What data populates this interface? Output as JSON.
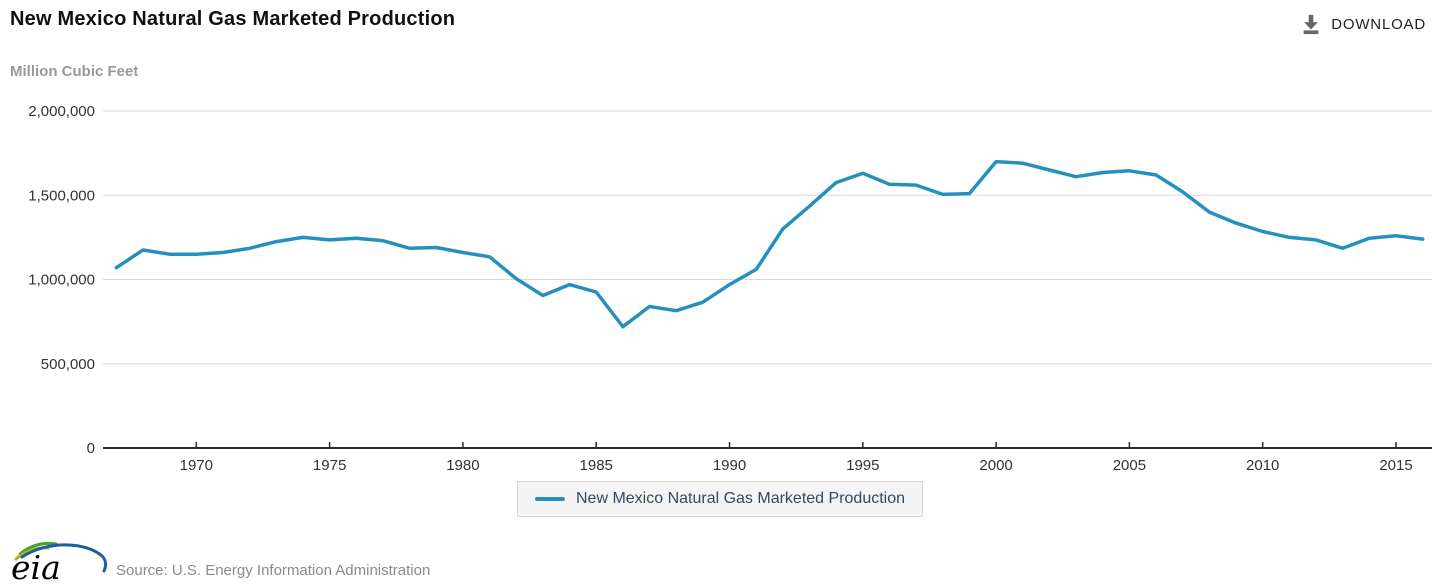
{
  "header": {
    "title": "New Mexico Natural Gas Marketed Production",
    "download_label": "DOWNLOAD"
  },
  "legend": {
    "label": "New Mexico Natural Gas Marketed Production"
  },
  "footer": {
    "logo_text": "eia",
    "source_text": "Source: U.S. Energy Information Administration"
  },
  "colors": {
    "line": "#2590be",
    "grid": "#d9d9d9",
    "axis": "#2b2b2b",
    "tick_label": "#333333",
    "legend_text": "#35495e",
    "subtitle": "#999999",
    "source_text": "#8a8a8a",
    "download_icon": "#666666",
    "logo_green": "#4f9d33",
    "logo_yellow": "#aeb514",
    "logo_blue": "#1c5f9e"
  },
  "chart_data": {
    "type": "line",
    "title": "New Mexico Natural Gas Marketed Production",
    "ylabel": "Million Cubic Feet",
    "xlabel": "",
    "grid": true,
    "legend_position": "bottom",
    "ylim": [
      0,
      2000000
    ],
    "xlim": [
      1966.5,
      2016.35
    ],
    "y_ticks": [
      0,
      500000,
      1000000,
      1500000,
      2000000
    ],
    "x_ticks": [
      1970,
      1975,
      1980,
      1985,
      1990,
      1995,
      2000,
      2005,
      2010,
      2015
    ],
    "x": [
      1967,
      1968,
      1969,
      1970,
      1971,
      1972,
      1973,
      1974,
      1975,
      1976,
      1977,
      1978,
      1979,
      1980,
      1981,
      1982,
      1983,
      1984,
      1985,
      1986,
      1987,
      1988,
      1989,
      1990,
      1991,
      1992,
      1993,
      1994,
      1995,
      1996,
      1997,
      1998,
      1999,
      2000,
      2001,
      2002,
      2003,
      2004,
      2005,
      2006,
      2007,
      2008,
      2009,
      2010,
      2011,
      2012,
      2013,
      2014,
      2015,
      2016
    ],
    "series": [
      {
        "name": "New Mexico Natural Gas Marketed Production",
        "values": [
          1070000,
          1175000,
          1150000,
          1150000,
          1160000,
          1185000,
          1225000,
          1250000,
          1235000,
          1245000,
          1230000,
          1185000,
          1190000,
          1160000,
          1135000,
          1005000,
          905000,
          970000,
          925000,
          720000,
          840000,
          815000,
          865000,
          970000,
          1060000,
          1300000,
          1435000,
          1575000,
          1630000,
          1565000,
          1560000,
          1505000,
          1510000,
          1700000,
          1690000,
          1650000,
          1610000,
          1635000,
          1645000,
          1620000,
          1520000,
          1400000,
          1335000,
          1285000,
          1250000,
          1235000,
          1185000,
          1245000,
          1260000,
          1240000
        ]
      }
    ]
  }
}
